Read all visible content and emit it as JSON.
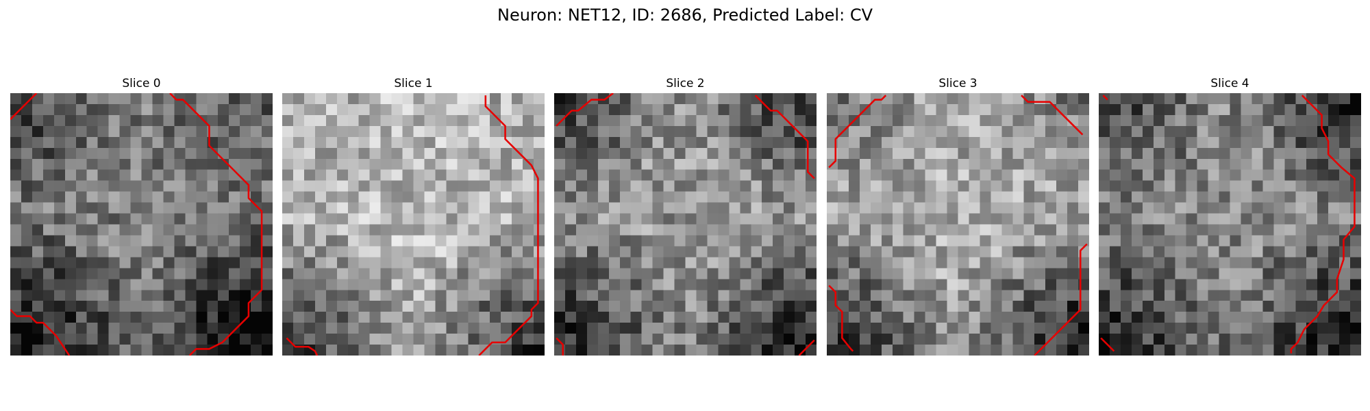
{
  "title": "Neuron: NET12, ID: 2686, Predicted Label: CV",
  "grid_size": 24,
  "contour_color": "#e60000",
  "slices": [
    {
      "label": "Slice 0",
      "base": 0.48,
      "dark_edges": {
        "bl": 0.45,
        "br": 0.55,
        "tl": 0.25,
        "tr": 0.15
      },
      "contours": [
        [
          [
            0,
            2.4
          ],
          [
            1.2,
            1.2
          ],
          [
            2.4,
            0
          ]
        ],
        [
          [
            14.6,
            0
          ],
          [
            15.2,
            0.6
          ],
          [
            15.8,
            0.6
          ],
          [
            17.6,
            2.4
          ],
          [
            18.2,
            3.0
          ],
          [
            18.2,
            4.8
          ],
          [
            19.4,
            6.0
          ],
          [
            20.6,
            7.2
          ],
          [
            21.8,
            8.4
          ],
          [
            21.8,
            9.6
          ],
          [
            23.0,
            10.8
          ],
          [
            23.0,
            18.0
          ],
          [
            21.8,
            19.2
          ],
          [
            21.8,
            20.4
          ],
          [
            20.6,
            21.6
          ],
          [
            19.4,
            22.8
          ],
          [
            19.4,
            22.8
          ],
          [
            18.2,
            23.4
          ],
          [
            17.0,
            23.4
          ],
          [
            16.4,
            24.0
          ]
        ],
        [
          [
            0,
            19.8
          ],
          [
            0.6,
            20.4
          ],
          [
            1.8,
            20.4
          ],
          [
            2.4,
            21.0
          ],
          [
            3.0,
            21.0
          ],
          [
            4.2,
            22.2
          ],
          [
            5.4,
            24.0
          ]
        ]
      ]
    },
    {
      "label": "Slice 1",
      "base": 0.72,
      "dark_edges": {
        "bl": 0.55,
        "br": 0.55,
        "tl": 0.05,
        "tr": 0.05
      },
      "contours": [
        [
          [
            18.6,
            0.2
          ],
          [
            18.6,
            1.2
          ],
          [
            20.4,
            3.0
          ],
          [
            20.4,
            4.2
          ],
          [
            21.6,
            5.4
          ],
          [
            22.8,
            6.6
          ],
          [
            23.4,
            7.8
          ],
          [
            23.4,
            19.2
          ],
          [
            22.8,
            19.8
          ],
          [
            22.8,
            20.4
          ],
          [
            21.6,
            21.6
          ],
          [
            20.4,
            22.8
          ],
          [
            19.2,
            22.8
          ],
          [
            18.0,
            24.0
          ]
        ],
        [
          [
            0.4,
            22.4
          ],
          [
            1.2,
            23.2
          ],
          [
            2.4,
            23.2
          ],
          [
            3.0,
            23.6
          ],
          [
            3.2,
            24.0
          ]
        ]
      ]
    },
    {
      "label": "Slice 2",
      "base": 0.58,
      "dark_edges": {
        "bl": 0.45,
        "br": 0.5,
        "tl": 0.35,
        "tr": 0.4
      },
      "contours": [
        [
          [
            0.2,
            3.0
          ],
          [
            1.6,
            1.6
          ],
          [
            2.2,
            1.6
          ],
          [
            3.4,
            0.6
          ],
          [
            4.6,
            0.6
          ],
          [
            5.4,
            0
          ]
        ],
        [
          [
            18.4,
            0.2
          ],
          [
            19.8,
            1.6
          ],
          [
            20.4,
            1.6
          ],
          [
            21.6,
            2.8
          ],
          [
            22.8,
            4.0
          ],
          [
            23.2,
            4.4
          ],
          [
            23.2,
            7.2
          ],
          [
            23.8,
            7.8
          ]
        ],
        [
          [
            0.2,
            22.4
          ],
          [
            0.8,
            23.0
          ],
          [
            0.8,
            24.0
          ]
        ],
        [
          [
            22.4,
            24.0
          ],
          [
            23.8,
            22.6
          ]
        ]
      ]
    },
    {
      "label": "Slice 3",
      "base": 0.66,
      "dark_edges": {
        "bl": 0.5,
        "br": 0.6,
        "tl": 0.2,
        "tr": 0.2
      },
      "contours": [
        [
          [
            0.2,
            6.8
          ],
          [
            0.8,
            6.2
          ],
          [
            0.8,
            4.2
          ],
          [
            2.0,
            3.0
          ],
          [
            3.2,
            1.8
          ],
          [
            4.4,
            0.6
          ],
          [
            5.0,
            0.6
          ],
          [
            5.4,
            0.2
          ]
        ],
        [
          [
            17.8,
            0.2
          ],
          [
            18.4,
            0.8
          ],
          [
            20.4,
            0.8
          ],
          [
            21.6,
            2.0
          ],
          [
            22.8,
            3.2
          ],
          [
            23.4,
            3.8
          ]
        ],
        [
          [
            23.8,
            13.8
          ],
          [
            23.2,
            14.4
          ],
          [
            23.2,
            19.8
          ],
          [
            22.6,
            20.4
          ],
          [
            21.4,
            21.6
          ],
          [
            20.2,
            22.8
          ],
          [
            19.6,
            23.4
          ],
          [
            19.0,
            24.0
          ]
        ],
        [
          [
            0.2,
            17.6
          ],
          [
            0.8,
            18.2
          ],
          [
            0.8,
            19.4
          ],
          [
            1.4,
            20.0
          ],
          [
            1.4,
            22.4
          ],
          [
            2.2,
            23.4
          ],
          [
            2.4,
            23.6
          ]
        ]
      ]
    },
    {
      "label": "Slice 4",
      "base": 0.52,
      "dark_edges": {
        "bl": 0.4,
        "br": 0.45,
        "tl": 0.3,
        "tr": 0.45
      },
      "contours": [
        [
          [
            18.6,
            0.2
          ],
          [
            19.2,
            0.8
          ],
          [
            20.4,
            2.0
          ],
          [
            20.4,
            3.2
          ],
          [
            21.0,
            4.4
          ],
          [
            21.0,
            5.6
          ],
          [
            22.2,
            6.8
          ],
          [
            23.4,
            7.8
          ],
          [
            23.4,
            9.8
          ],
          [
            23.4,
            12.2
          ],
          [
            22.4,
            13.4
          ],
          [
            22.4,
            15.2
          ],
          [
            21.8,
            17.0
          ],
          [
            21.8,
            18.2
          ],
          [
            20.6,
            19.4
          ],
          [
            20.6,
            19.4
          ],
          [
            20.0,
            20.4
          ],
          [
            18.8,
            21.6
          ],
          [
            18.2,
            22.8
          ],
          [
            17.6,
            23.4
          ],
          [
            17.6,
            23.8
          ]
        ],
        [
          [
            0.2,
            22.4
          ],
          [
            1.4,
            23.6
          ]
        ],
        [
          [
            0.4,
            0.2
          ],
          [
            0.8,
            0.6
          ]
        ]
      ]
    }
  ]
}
